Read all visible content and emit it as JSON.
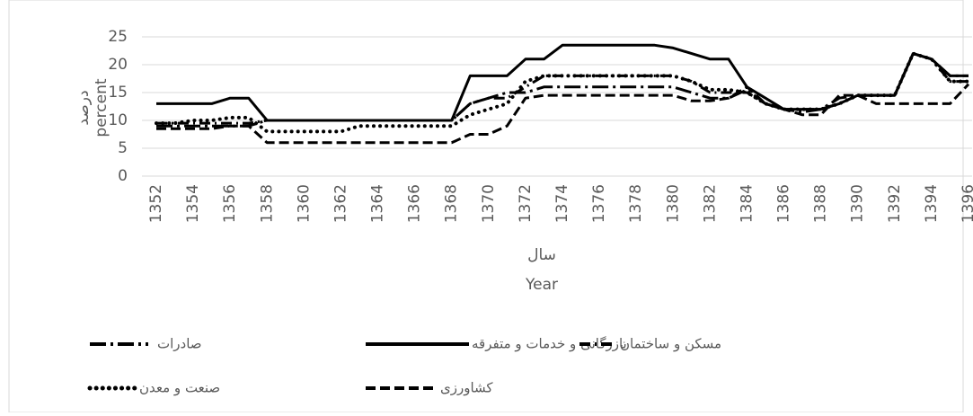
{
  "chart_data": {
    "type": "line",
    "y_label": "درصد",
    "y_label_en": "percent",
    "x_label": "سال",
    "x_label_en": "Year",
    "x": [
      1352,
      1353,
      1354,
      1355,
      1356,
      1357,
      1358,
      1359,
      1360,
      1361,
      1362,
      1363,
      1364,
      1365,
      1366,
      1367,
      1368,
      1369,
      1370,
      1371,
      1372,
      1373,
      1374,
      1375,
      1376,
      1377,
      1378,
      1379,
      1380,
      1381,
      1382,
      1383,
      1384,
      1385,
      1386,
      1387,
      1388,
      1389,
      1390,
      1391,
      1392,
      1393,
      1394,
      1395,
      1396
    ],
    "xlim": [
      1352,
      1396
    ],
    "xticks": [
      1352,
      1354,
      1356,
      1358,
      1360,
      1362,
      1364,
      1366,
      1368,
      1370,
      1372,
      1374,
      1376,
      1378,
      1380,
      1382,
      1384,
      1386,
      1388,
      1390,
      1392,
      1394,
      1396
    ],
    "ylim": [
      0,
      25
    ],
    "yticks": [
      0,
      5,
      10,
      15,
      20,
      25
    ],
    "grid": true,
    "series": [
      {
        "name": "صادرات",
        "color": "#000000",
        "style": "dashdot-long",
        "values": [
          9,
          9,
          9,
          9,
          9,
          9,
          10,
          10,
          10,
          10,
          10,
          10,
          10,
          10,
          10,
          10,
          10,
          13,
          14,
          15,
          15,
          16,
          16,
          16,
          16,
          16,
          16,
          16,
          16,
          15,
          14,
          14,
          15.5,
          13,
          12,
          11.5,
          12,
          14,
          14.5,
          14.5,
          14.5,
          22,
          21,
          18,
          18
        ]
      },
      {
        "name": "بازرگانی و خدمات و متفرقه",
        "color": "#000000",
        "style": "solid",
        "values": [
          13,
          13,
          13,
          13,
          14,
          14,
          10,
          10,
          10,
          10,
          10,
          10,
          10,
          10,
          10,
          10,
          10,
          18,
          18,
          18,
          21,
          21,
          23.5,
          23.5,
          23.5,
          23.5,
          23.5,
          23.5,
          23,
          22,
          21,
          21,
          16,
          14,
          12,
          12,
          12,
          13,
          14.5,
          14.5,
          14.5,
          22,
          21,
          18,
          18
        ]
      },
      {
        "name": "مسکن و ساختمان",
        "color": "#000000",
        "style": "dashdot",
        "values": [
          9.5,
          9.5,
          9.5,
          9.5,
          9.5,
          9.5,
          10,
          10,
          10,
          10,
          10,
          10,
          10,
          10,
          10,
          10,
          10,
          13,
          14,
          14,
          16,
          18,
          18,
          18,
          18,
          18,
          18,
          18,
          18,
          17,
          15,
          15,
          15,
          13,
          12,
          12,
          12,
          13,
          14.5,
          14.5,
          14.5,
          22,
          21,
          17,
          17
        ]
      },
      {
        "name": "صنعت و معدن",
        "color": "#000000",
        "style": "dotted",
        "values": [
          9.5,
          9.5,
          10,
          10,
          10.5,
          10.5,
          8,
          8,
          8,
          8,
          8,
          9,
          9,
          9,
          9,
          9,
          9,
          11,
          12,
          13,
          17,
          18,
          18,
          18,
          18,
          18,
          18,
          18,
          18,
          17,
          15.5,
          15.5,
          15,
          13,
          12,
          12,
          12,
          13,
          14.5,
          14.5,
          14.5,
          22,
          21,
          17,
          17
        ]
      },
      {
        "name": "کشاورزی",
        "color": "#000000",
        "style": "dashed",
        "values": [
          8.5,
          8.5,
          8.5,
          8.5,
          9,
          9,
          6,
          6,
          6,
          6,
          6,
          6,
          6,
          6,
          6,
          6,
          6,
          7.5,
          7.5,
          9,
          14,
          14.5,
          14.5,
          14.5,
          14.5,
          14.5,
          14.5,
          14.5,
          14.5,
          13.5,
          13.5,
          14,
          16,
          13,
          12,
          11,
          11,
          14.5,
          14.5,
          13,
          13,
          13,
          13,
          13,
          16.5
        ]
      }
    ]
  }
}
